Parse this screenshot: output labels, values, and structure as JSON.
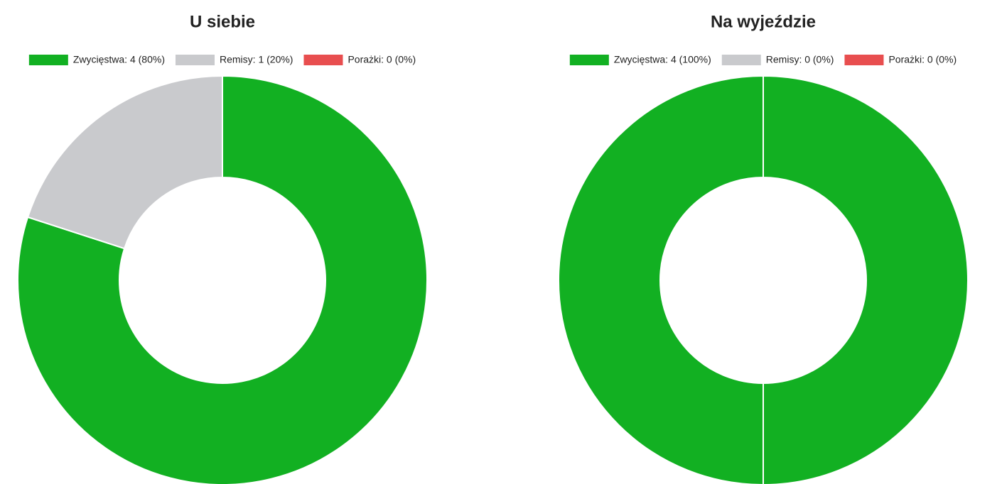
{
  "chart_data": [
    {
      "type": "doughnut",
      "title": "U siebie",
      "categories": [
        "Zwycięstwa: 4 (80%)",
        "Remisy: 1 (20%)",
        "Porażki: 0 (0%)"
      ],
      "values": [
        4,
        1,
        0
      ],
      "colors": [
        "#12b022",
        "#c9cacd",
        "#e84e4f"
      ]
    },
    {
      "type": "doughnut",
      "title": "Na wyjeździe",
      "categories": [
        "Zwycięstwa: 4 (100%)",
        "Remisy: 0 (0%)",
        "Porażki: 0 (0%)"
      ],
      "values": [
        4,
        0,
        0
      ],
      "colors": [
        "#12b022",
        "#c9cacd",
        "#e84e4f"
      ]
    }
  ]
}
